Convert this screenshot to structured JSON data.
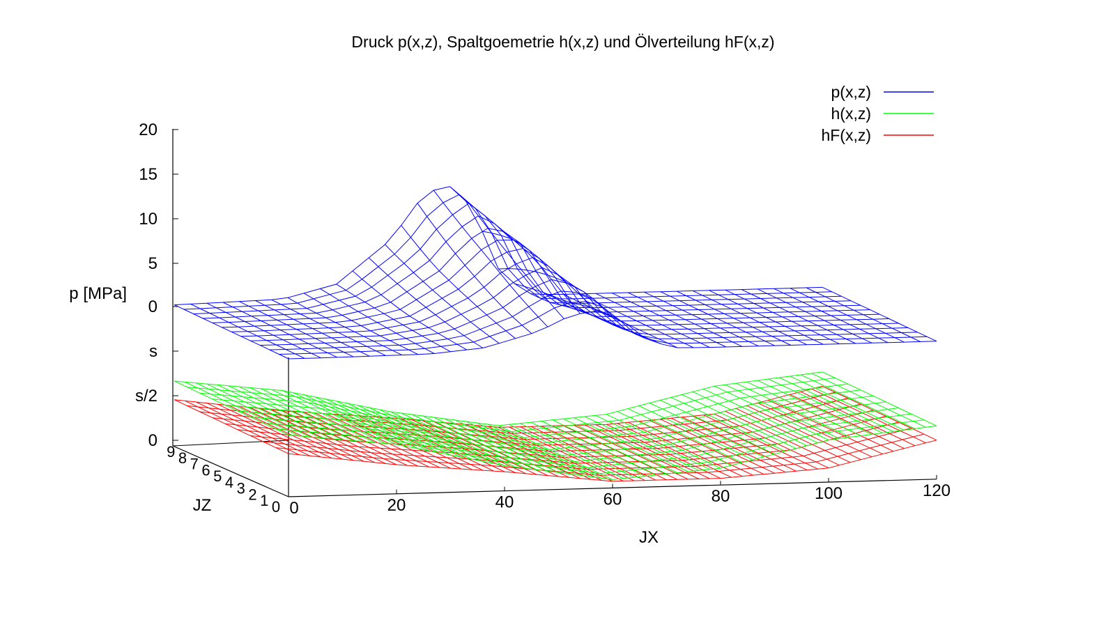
{
  "chart_data": {
    "type": "surface3d",
    "title": "Druck p(x,z), Spaltgoemetrie h(x,z) und Ölverteilung hF(x,z)",
    "xlabel": "JX",
    "ylabel": "JZ",
    "zlabel": "p [MPa]",
    "xlim": [
      0,
      120
    ],
    "ylim": [
      0,
      9
    ],
    "x_ticks": [
      "0",
      "20",
      "40",
      "60",
      "80",
      "100",
      "120"
    ],
    "y_ticks": [
      "0",
      "1",
      "2",
      "3",
      "4",
      "5",
      "6",
      "7",
      "8",
      "9"
    ],
    "z_ticks": [
      "0",
      "s/2",
      "s",
      "0",
      "5",
      "10",
      "15",
      "20"
    ],
    "legend_position": "top-right",
    "series": [
      {
        "name": "p(x,z)",
        "color": "#0000ff",
        "x": [
          0,
          20,
          30,
          40,
          45,
          50,
          55,
          60,
          65,
          70,
          80,
          100,
          120
        ],
        "values_center": [
          0,
          0.3,
          1.8,
          6.5,
          10.5,
          12.8,
          10.0,
          3.0,
          0.2,
          0,
          0,
          0,
          0
        ]
      },
      {
        "name": "h(x,z)",
        "color": "#00ff00",
        "x": [
          0,
          20,
          40,
          60,
          80,
          100,
          120
        ],
        "values": [
          "s",
          "0.78 s",
          "0.35 s",
          "0.05 s",
          "0.2 s",
          "0.65 s",
          "0.85 s"
        ]
      },
      {
        "name": "hF(x,z)",
        "color": "#ff0000",
        "x": [
          0,
          20,
          40,
          60,
          80,
          100,
          120
        ],
        "values": [
          "0.78 s",
          "0.5 s",
          "0.3 s",
          "0.05 s",
          "0.05 s",
          "0.2 s",
          "0.7 s"
        ]
      }
    ]
  }
}
